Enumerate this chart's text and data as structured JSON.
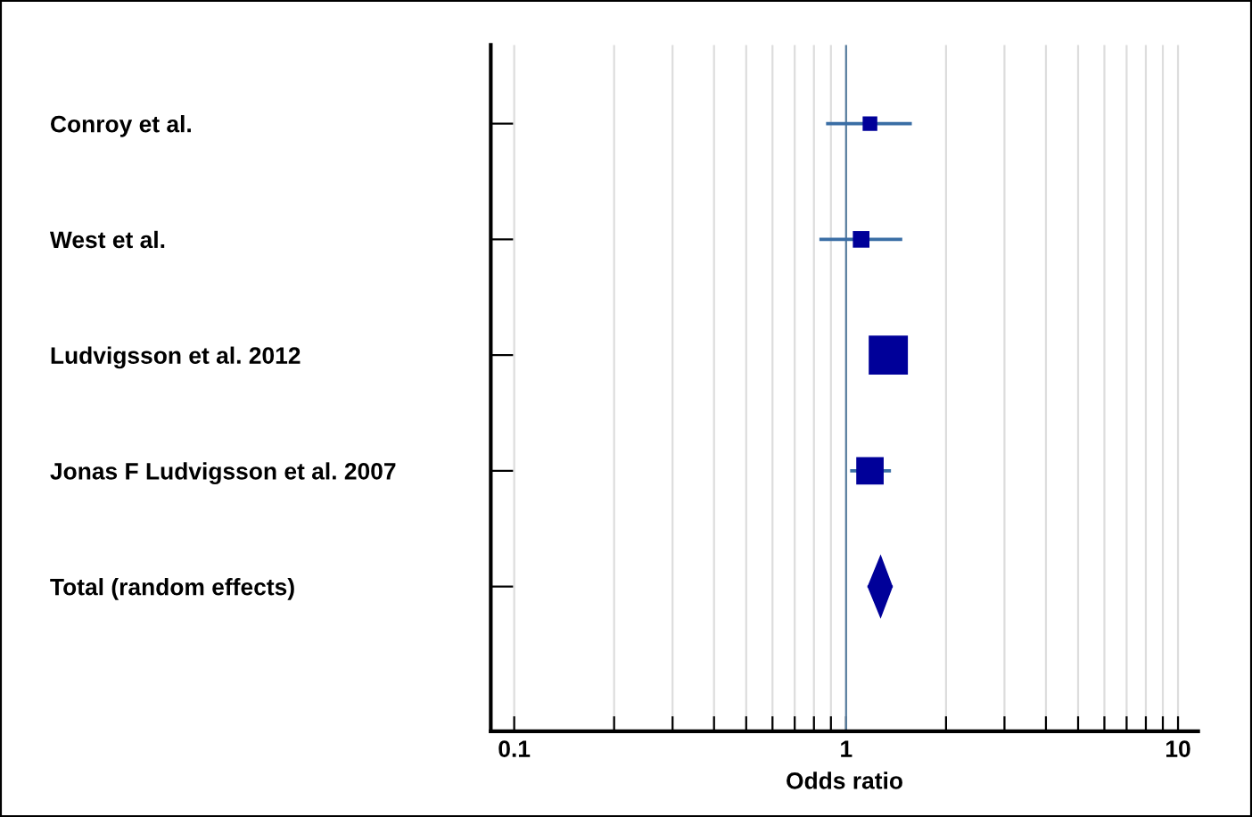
{
  "chart_data": {
    "type": "bubble",
    "orientation": "horizontal",
    "xlabel": "Odds ratio",
    "log": "x",
    "categories": [
      "Conroy et al.",
      "West et al.",
      "Ludvigsson et al. 2012",
      "Jonas F Ludvigsson et al. 2007",
      "Total (random effects)"
    ],
    "series": [
      {
        "marker": "square",
        "color": "#000099",
        "values": [
          1.18,
          1.11,
          1.34,
          1.18,
          null
        ],
        "sizes": [
          0.14,
          0.18,
          1,
          0.49,
          null
        ],
        "errors": [
          [
            0.88,
            1.56
          ],
          [
            0.84,
            1.46
          ],
          null,
          [
            1.04,
            1.35
          ],
          null
        ]
      },
      {
        "type": "scatter",
        "marker": "diamond",
        "color": "#000099",
        "values": [
          null,
          null,
          null,
          null,
          1.27
        ],
        "errors": [
          null,
          null,
          null,
          null,
          [
            1.17,
            1.37
          ]
        ]
      }
    ],
    "xlim": [
      0.085,
      11.5
    ],
    "xticks": [
      0.1,
      {
        "value": 0.2,
        "label": null
      },
      {
        "value": 0.3,
        "label": null
      },
      {
        "value": 0.4,
        "label": null
      },
      {
        "value": 0.5,
        "label": null
      },
      {
        "value": 0.6,
        "label": null
      },
      {
        "value": 0.7,
        "label": null
      },
      {
        "value": 0.8,
        "label": null
      },
      {
        "value": 0.9,
        "label": null
      },
      1,
      {
        "value": 2,
        "label": null
      },
      {
        "value": 3,
        "label": null
      },
      {
        "value": 4,
        "label": null
      },
      {
        "value": 5,
        "label": null
      },
      {
        "value": 6,
        "label": null
      },
      {
        "value": 7,
        "label": null
      },
      {
        "value": 8,
        "label": null
      },
      {
        "value": 9,
        "label": null
      },
      10
    ],
    "grid": "x",
    "ref_lines": [
      {
        "axis": "x",
        "value": 1,
        "color": "#5a7fa0"
      }
    ]
  }
}
